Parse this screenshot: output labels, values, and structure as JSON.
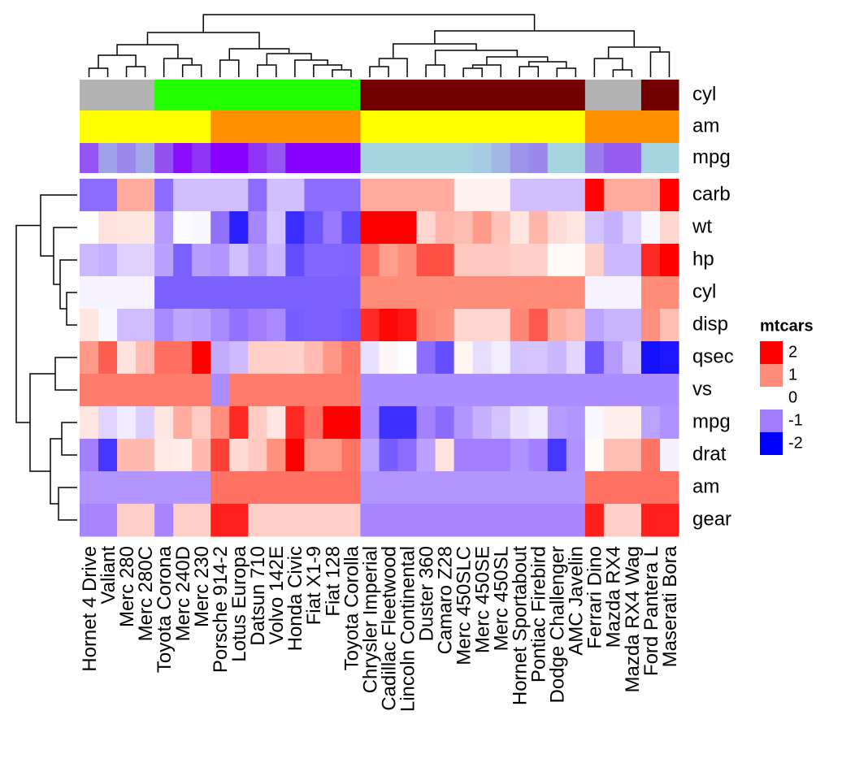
{
  "chart_data": {
    "type": "heatmap",
    "columns": [
      "Hornet 4 Drive",
      "Valiant",
      "Merc 280",
      "Merc 280C",
      "Toyota Corona",
      "Merc 240D",
      "Merc 230",
      "Porsche 914-2",
      "Lotus Europa",
      "Datsun 710",
      "Volvo 142E",
      "Honda Civic",
      "Fiat X1-9",
      "Fiat 128",
      "Toyota Corolla",
      "Chrysler Imperial",
      "Cadillac Fleetwood",
      "Lincoln Continental",
      "Duster 360",
      "Camaro Z28",
      "Merc 450SLC",
      "Merc 450SE",
      "Merc 450SL",
      "Hornet Sportabout",
      "Pontiac Firebird",
      "Dodge Challenger",
      "AMC Javelin",
      "Ferrari Dino",
      "Mazda RX4",
      "Mazda RX4 Wag",
      "Ford Pantera L",
      "Maserati Bora"
    ],
    "rows": [
      "carb",
      "wt",
      "hp",
      "cyl",
      "disp",
      "qsec",
      "vs",
      "mpg",
      "drat",
      "am",
      "gear"
    ],
    "values": [
      [
        -1.12,
        -1.12,
        0.74,
        0.74,
        -1.12,
        -0.5,
        -0.5,
        -0.5,
        -0.5,
        -1.12,
        -0.5,
        -0.5,
        -1.12,
        -1.12,
        -1.12,
        0.74,
        0.74,
        0.74,
        0.74,
        0.74,
        0.12,
        0.12,
        0.12,
        -0.5,
        -0.5,
        -0.5,
        -0.5,
        1.97,
        0.74,
        0.74,
        0.74,
        3.21
      ],
      [
        0.0,
        0.25,
        0.23,
        0.23,
        -0.77,
        -0.03,
        -0.07,
        -1.1,
        -1.74,
        -0.92,
        -0.45,
        -1.64,
        -1.31,
        -1.04,
        -1.41,
        2.17,
        2.08,
        2.26,
        0.36,
        0.64,
        0.58,
        0.87,
        0.52,
        0.23,
        0.64,
        0.31,
        0.22,
        -0.46,
        -0.61,
        -0.35,
        -0.05,
        0.36
      ],
      [
        -0.54,
        -0.61,
        -0.35,
        -0.35,
        -0.72,
        -1.23,
        -0.75,
        -0.81,
        -0.49,
        -0.78,
        -0.55,
        -1.38,
        -1.18,
        -1.18,
        -1.19,
        1.22,
        0.85,
        1.0,
        1.43,
        1.43,
        0.49,
        0.49,
        0.49,
        0.41,
        0.41,
        0.05,
        0.05,
        0.41,
        -0.54,
        -0.54,
        1.71,
        2.75
      ],
      [
        -0.1,
        -0.1,
        -0.1,
        -0.1,
        -1.22,
        -1.22,
        -1.22,
        -1.22,
        -1.22,
        -1.22,
        -1.22,
        -1.22,
        -1.22,
        -1.22,
        -1.22,
        1.01,
        1.01,
        1.01,
        1.01,
        1.01,
        1.01,
        1.01,
        1.01,
        1.01,
        1.01,
        1.01,
        1.01,
        -0.1,
        -0.1,
        -0.1,
        1.01,
        1.01
      ],
      [
        0.22,
        -0.05,
        -0.51,
        -0.51,
        -0.89,
        -0.68,
        -0.73,
        -0.89,
        -1.09,
        -0.99,
        -0.89,
        -1.25,
        -1.22,
        -1.23,
        -1.29,
        1.69,
        1.95,
        1.85,
        1.04,
        0.96,
        0.36,
        0.36,
        0.36,
        1.04,
        1.37,
        0.7,
        0.59,
        -0.69,
        -0.57,
        -0.57,
        0.97,
        0.57
      ],
      [
        0.89,
        1.33,
        0.25,
        0.59,
        1.21,
        1.2,
        2.83,
        -0.64,
        -0.53,
        0.43,
        0.42,
        0.38,
        0.59,
        0.91,
        1.15,
        -0.24,
        0.07,
        -0.02,
        -1.12,
        -1.36,
        0.08,
        -0.25,
        -0.14,
        -0.46,
        -0.45,
        -0.55,
        -0.31,
        -1.31,
        -0.78,
        -0.46,
        -1.87,
        -1.82
      ],
      [
        1.12,
        1.12,
        1.12,
        1.12,
        1.12,
        1.12,
        1.12,
        -0.87,
        1.12,
        1.12,
        1.12,
        1.12,
        1.12,
        1.12,
        1.12,
        -0.87,
        -0.87,
        -0.87,
        -0.87,
        -0.87,
        -0.87,
        -0.87,
        -0.87,
        -0.87,
        -0.87,
        -0.87,
        -0.87,
        -0.87,
        -0.87,
        -0.87,
        -0.87,
        -0.87
      ],
      [
        0.22,
        -0.33,
        -0.15,
        -0.38,
        0.23,
        0.72,
        0.45,
        0.98,
        1.71,
        0.45,
        0.22,
        1.71,
        1.2,
        2.04,
        2.29,
        -0.89,
        -1.61,
        -1.61,
        -0.96,
        -1.13,
        -0.81,
        -0.61,
        -0.46,
        -0.23,
        -0.15,
        -0.76,
        -0.81,
        -0.06,
        0.15,
        0.15,
        -0.71,
        -0.84
      ],
      [
        -0.97,
        -1.56,
        0.6,
        0.6,
        0.19,
        0.17,
        0.6,
        1.56,
        0.32,
        0.47,
        0.96,
        2.49,
        0.9,
        0.9,
        1.17,
        -0.69,
        -1.25,
        -1.12,
        -0.72,
        0.25,
        -0.98,
        -0.98,
        -0.98,
        -0.84,
        -0.97,
        -1.56,
        -0.84,
        0.04,
        0.57,
        0.57,
        1.17,
        -0.11
      ],
      [
        -0.81,
        -0.81,
        -0.81,
        -0.81,
        -0.81,
        -0.81,
        -0.81,
        1.19,
        1.19,
        1.19,
        1.19,
        1.19,
        1.19,
        1.19,
        1.19,
        -0.81,
        -0.81,
        -0.81,
        -0.81,
        -0.81,
        -0.81,
        -0.81,
        -0.81,
        -0.81,
        -0.81,
        -0.81,
        -0.81,
        1.19,
        1.19,
        1.19,
        1.19,
        1.19
      ],
      [
        -0.93,
        -0.93,
        0.42,
        0.42,
        -0.93,
        0.42,
        0.42,
        1.78,
        1.78,
        0.42,
        0.42,
        0.42,
        0.42,
        0.42,
        0.42,
        -0.93,
        -0.93,
        -0.93,
        -0.93,
        -0.93,
        -0.93,
        -0.93,
        -0.93,
        -0.93,
        -0.93,
        -0.93,
        -0.93,
        1.78,
        0.42,
        0.42,
        1.78,
        1.78
      ]
    ],
    "colorscale": {
      "breaks": [
        -2,
        -1,
        0,
        1,
        2
      ],
      "colors": [
        "#0000ff",
        "#a07cff",
        "#ffffff",
        "#ff8c7a",
        "#ff0000"
      ]
    },
    "legend": {
      "title": "mtcars",
      "labels": [
        2,
        1,
        0,
        -1,
        -2
      ]
    },
    "annotations": [
      {
        "name": "cyl",
        "values": [
          6,
          6,
          6,
          6,
          4,
          4,
          4,
          4,
          4,
          4,
          4,
          4,
          4,
          4,
          4,
          8,
          8,
          8,
          8,
          8,
          8,
          8,
          8,
          8,
          8,
          8,
          8,
          6,
          6,
          6,
          8,
          8
        ],
        "colors": {
          "4": "#22ff00",
          "6": "#b3b3b3",
          "8": "#720000"
        }
      },
      {
        "name": "am",
        "values": [
          0,
          0,
          0,
          0,
          0,
          0,
          0,
          1,
          1,
          1,
          1,
          1,
          1,
          1,
          1,
          0,
          0,
          0,
          0,
          0,
          0,
          0,
          0,
          0,
          0,
          0,
          0,
          1,
          1,
          1,
          1,
          1
        ],
        "colors": {
          "0": "#ffff00",
          "1": "#ff9000"
        }
      },
      {
        "name": "mpg",
        "values": [
          21.4,
          18.1,
          19.2,
          17.8,
          21.5,
          24.4,
          22.8,
          26,
          30.4,
          22.8,
          21.4,
          30.4,
          27.3,
          32.4,
          33.9,
          14.7,
          10.4,
          10.4,
          14.3,
          13.3,
          15.2,
          16.4,
          17.3,
          18.7,
          19.2,
          15.5,
          15.2,
          19.7,
          21,
          21,
          15.8,
          15
        ],
        "stops": [
          [
            16,
            "#a6d3e0"
          ],
          [
            25,
            "#8800ff"
          ]
        ]
      }
    ]
  }
}
